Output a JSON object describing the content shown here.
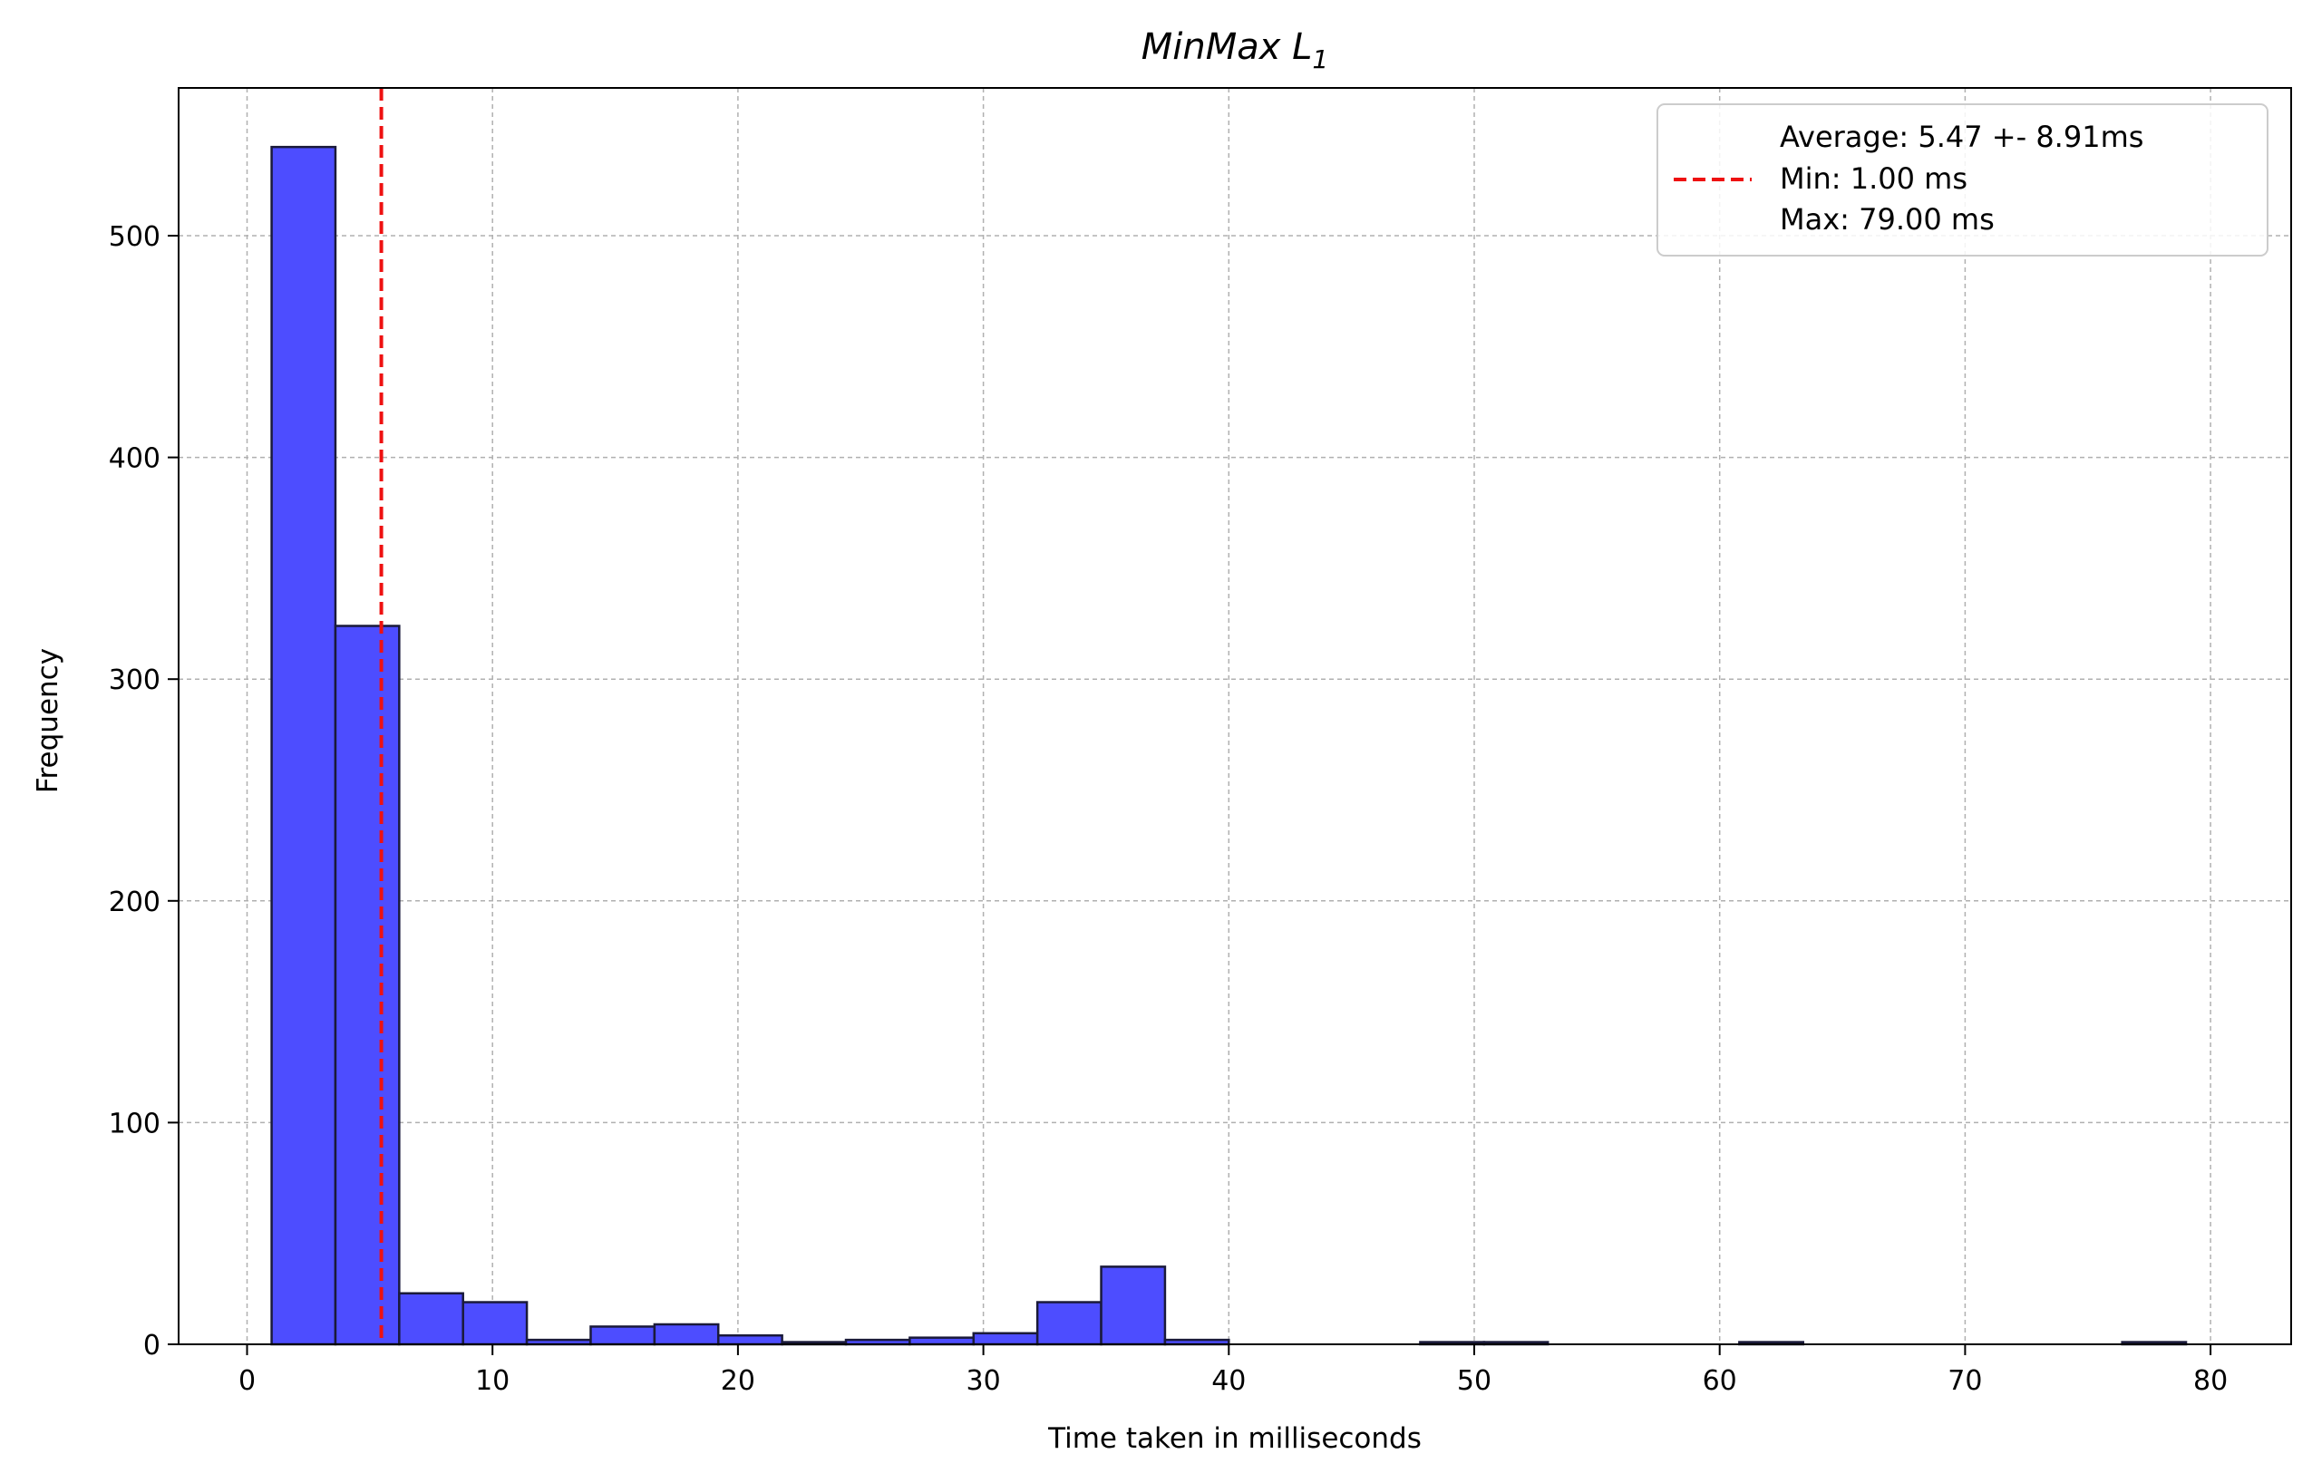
{
  "chart_data": {
    "type": "bar",
    "title": "MinMax L",
    "title_subscript": "1",
    "xlabel": "Time taken in milliseconds",
    "ylabel": "Frequency",
    "xlim": [
      -3,
      83
    ],
    "ylim": [
      0,
      567
    ],
    "xticks": [
      0,
      10,
      20,
      30,
      40,
      50,
      60,
      70,
      80
    ],
    "yticks": [
      0,
      100,
      200,
      300,
      400,
      500
    ],
    "grid": true,
    "legend_position": "top-right",
    "bin_start": 1.0,
    "bin_width": 2.6,
    "bin_counts": [
      540,
      324,
      23,
      19,
      2,
      8,
      9,
      4,
      1,
      2,
      3,
      5,
      19,
      35,
      2,
      0,
      0,
      0,
      1,
      1,
      0,
      0,
      0,
      1,
      0,
      0,
      0,
      0,
      0,
      1
    ],
    "bar_color": "#4d4dff",
    "edge_color": "#1a1a3a",
    "mean_line": {
      "x": 5.47,
      "color": "#ee1111",
      "style": "dashed"
    },
    "legend": {
      "lines": [
        "Average: 5.47 +- 8.91ms",
        "Min: 1.00 ms",
        "Max: 79.00 ms"
      ]
    }
  }
}
